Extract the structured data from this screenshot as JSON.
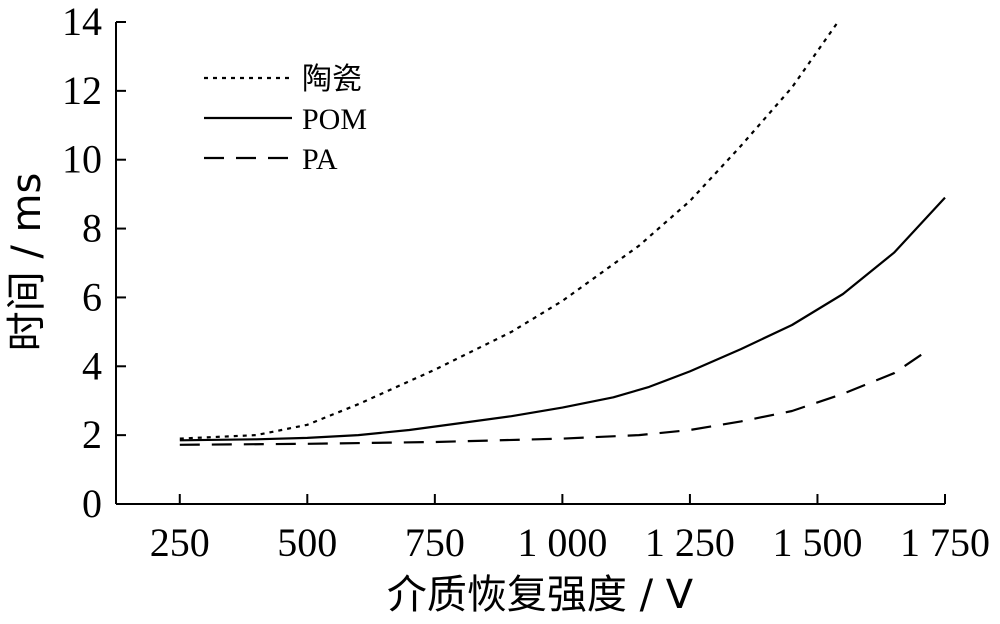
{
  "chart_data": {
    "type": "line",
    "xlabel": "介质恢复强度 / V",
    "ylabel": "时间 / ms",
    "xlim": [
      125,
      1750
    ],
    "ylim": [
      0,
      14
    ],
    "xticks": [
      250,
      500,
      750,
      1000,
      1250,
      1500,
      1750
    ],
    "xtick_labels": [
      "250",
      "500",
      "750",
      "1 000",
      "1 250",
      "1 500",
      "1 750"
    ],
    "yticks": [
      0,
      2,
      4,
      6,
      8,
      10,
      12,
      14
    ],
    "ytick_labels": [
      "0",
      "2",
      "4",
      "6",
      "8",
      "10",
      "12",
      "14"
    ],
    "grid": false,
    "legend_position": "top-left",
    "series": [
      {
        "name": "陶瓷",
        "style": "dotted",
        "x": [
          250,
          400,
          500,
          600,
          750,
          900,
          1000,
          1150,
          1250,
          1350,
          1450,
          1540
        ],
        "y": [
          1.9,
          2.0,
          2.3,
          2.9,
          3.9,
          5.0,
          5.9,
          7.5,
          8.8,
          10.4,
          12.1,
          14.0
        ]
      },
      {
        "name": "POM",
        "style": "solid",
        "x": [
          250,
          400,
          500,
          600,
          700,
          800,
          900,
          1000,
          1100,
          1170,
          1250,
          1350,
          1450,
          1550,
          1650,
          1750
        ],
        "y": [
          1.85,
          1.88,
          1.92,
          2.0,
          2.15,
          2.35,
          2.55,
          2.8,
          3.1,
          3.4,
          3.85,
          4.5,
          5.2,
          6.1,
          7.3,
          8.9
        ]
      },
      {
        "name": "PA",
        "style": "dashed",
        "x": [
          250,
          500,
          750,
          1000,
          1150,
          1250,
          1350,
          1450,
          1550,
          1650,
          1720
        ],
        "y": [
          1.72,
          1.75,
          1.8,
          1.9,
          2.0,
          2.15,
          2.4,
          2.7,
          3.2,
          3.8,
          4.5
        ]
      }
    ]
  },
  "colors": {
    "ink": "#000000",
    "background": "#ffffff"
  }
}
